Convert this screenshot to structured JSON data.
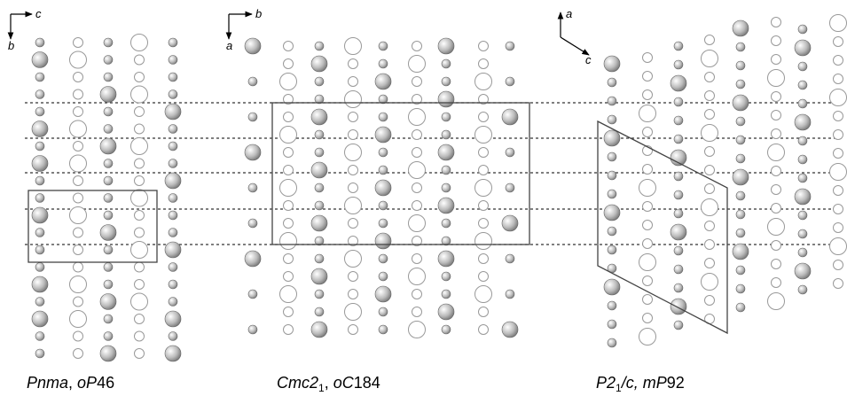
{
  "axes": {
    "panel1": {
      "h": "c",
      "v": "b"
    },
    "panel2": {
      "h": "b",
      "v": "a"
    },
    "panel3": {
      "up": "a",
      "diag": "c"
    }
  },
  "captions": [
    [
      "Pnma",
      ", ",
      "oP",
      "46"
    ],
    [
      "Cmc2",
      "1",
      ", ",
      "oC",
      "184"
    ],
    [
      "P2",
      "1",
      "/c, ",
      "mP",
      "92"
    ]
  ]
}
